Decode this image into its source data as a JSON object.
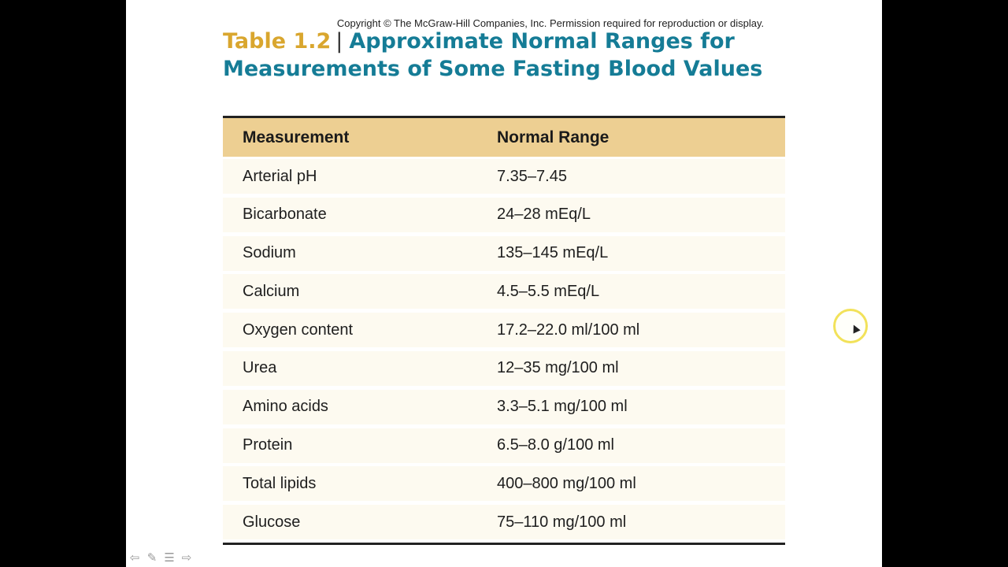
{
  "slide": {
    "copyright": "Copyright © The McGraw-Hill Companies, Inc. Permission required for reproduction or display.",
    "table_number": "Table 1.2",
    "title": "Approximate Normal Ranges for Measurements of Some Fasting Blood Values"
  },
  "table": {
    "headers": [
      "Measurement",
      "Normal Range"
    ],
    "rows": [
      [
        "Arterial pH",
        "7.35–7.45"
      ],
      [
        "Bicarbonate",
        "24–28 mEq/L"
      ],
      [
        "Sodium",
        "135–145 mEq/L"
      ],
      [
        "Calcium",
        "4.5–5.5 mEq/L"
      ],
      [
        "Oxygen content",
        "17.2–22.0 ml/100 ml"
      ],
      [
        "Urea",
        "12–35 mg/100 ml"
      ],
      [
        "Amino acids",
        "3.3–5.1 mg/100 ml"
      ],
      [
        "Protein",
        "6.5–8.0 g/100 ml"
      ],
      [
        "Total lipids",
        "400–800 mg/100 ml"
      ],
      [
        "Glucose",
        "75–110 mg/100 ml"
      ]
    ]
  },
  "nav": {
    "icons": [
      "arrow-left-icon",
      "pen-icon",
      "menu-icon",
      "arrow-right-icon"
    ]
  },
  "colors": {
    "title": "#157c96",
    "table_number": "#d9a62e",
    "header_bg": "#edcf92",
    "row_bg": "#fdfaf0"
  }
}
